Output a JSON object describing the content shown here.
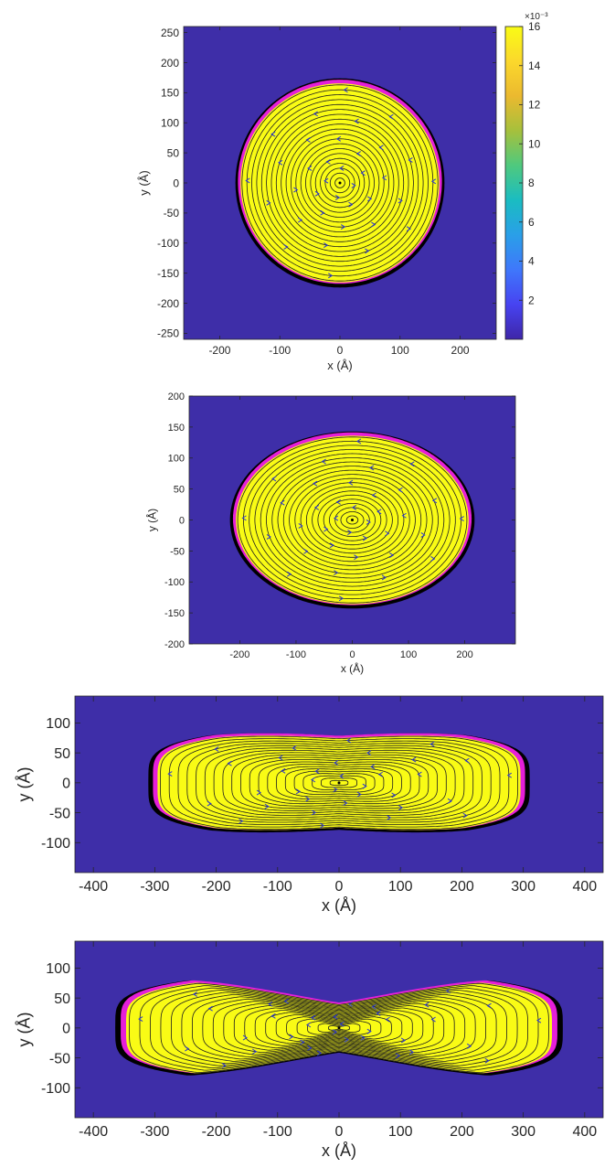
{
  "colors": {
    "background": "#3e2ea8",
    "fill": "#f9fb15",
    "rim": "#000000",
    "boundary": "#e51fd9",
    "streamline": "#1f1f1f",
    "arrow": "#2a36d6",
    "colormap": [
      "#3e26a8",
      "#4743f1",
      "#3f77fb",
      "#2a9fe8",
      "#1abcc2",
      "#4fc97e",
      "#a6c03c",
      "#ebb92f",
      "#fbd82c",
      "#f9fb15"
    ]
  },
  "chart_data": [
    {
      "type": "heatmap",
      "title": "",
      "xlabel": "x (Å)",
      "ylabel": "y (Å)",
      "xlim": [
        -260,
        260
      ],
      "ylim": [
        -260,
        260
      ],
      "xticks": [
        -200,
        -100,
        0,
        100,
        200
      ],
      "yticks": [
        -250,
        -200,
        -150,
        -100,
        -50,
        0,
        50,
        100,
        150,
        200,
        250
      ],
      "shape": {
        "kind": "disk",
        "half_length": 168,
        "half_width": 168,
        "waist_half_width": 168
      },
      "streamlines": "concentric closed loops around (0, 0)",
      "colorbar": {
        "range": [
          0,
          16
        ],
        "ticks": [
          2,
          4,
          6,
          8,
          10,
          12,
          14,
          16
        ],
        "exponent_label": "×10⁻³"
      }
    },
    {
      "type": "heatmap",
      "title": "",
      "xlabel": "x (Å)",
      "ylabel": "y (Å)",
      "xlim": [
        -290,
        290
      ],
      "ylim": [
        -200,
        200
      ],
      "xticks": [
        -200,
        -100,
        0,
        100,
        200
      ],
      "yticks": [
        -200,
        -150,
        -100,
        -50,
        0,
        50,
        100,
        150,
        200
      ],
      "shape": {
        "kind": "ellipse",
        "half_length": 210,
        "half_width": 138,
        "waist_half_width": 138
      },
      "streamlines": "concentric closed loops around (0, 0)"
    },
    {
      "type": "heatmap",
      "title": "",
      "xlabel": "x (Å)",
      "ylabel": "y (Å)",
      "xlim": [
        -430,
        430
      ],
      "ylim": [
        -150,
        145
      ],
      "xticks": [
        -400,
        -300,
        -200,
        -100,
        0,
        100,
        200,
        300,
        400
      ],
      "yticks": [
        -100,
        -50,
        0,
        50,
        100
      ],
      "shape": {
        "kind": "peanut",
        "half_length": 300,
        "half_width": 90,
        "waist_half_width": 76
      },
      "streamlines": "concentric closed loops around (0, 0)"
    },
    {
      "type": "heatmap",
      "title": "",
      "xlabel": "x (Å)",
      "ylabel": "y (Å)",
      "xlim": [
        -430,
        430
      ],
      "ylim": [
        -150,
        145
      ],
      "xticks": [
        -400,
        -300,
        -200,
        -100,
        0,
        100,
        200,
        300,
        400
      ],
      "yticks": [
        -100,
        -50,
        0,
        50,
        100
      ],
      "shape": {
        "kind": "peanut",
        "half_length": 352,
        "half_width": 90,
        "waist_half_width": 40
      },
      "streamlines": "concentric closed loops around (0, 0)"
    }
  ]
}
